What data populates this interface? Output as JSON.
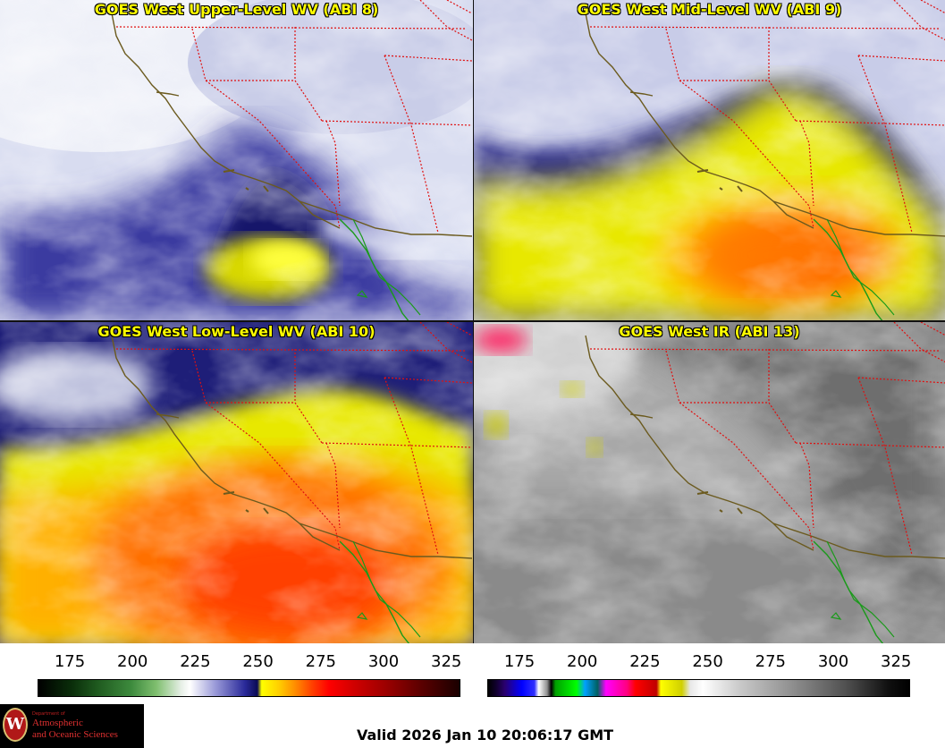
{
  "panels": [
    {
      "title": "GOES West Upper-Level WV (ABI 8)",
      "palette": "wv"
    },
    {
      "title": "GOES West Mid-Level WV (ABI 9)",
      "palette": "wv"
    },
    {
      "title": "GOES West Low-Level WV (ABI 10)",
      "palette": "wv"
    },
    {
      "title": "GOES West IR (ABI 13)",
      "palette": "ir"
    }
  ],
  "colorbars": {
    "left_ticks": [
      "175",
      "200",
      "225",
      "250",
      "275",
      "300",
      "325"
    ],
    "right_ticks": [
      "175",
      "200",
      "225",
      "250",
      "275",
      "300",
      "325"
    ]
  },
  "logo": {
    "dept": "Department of",
    "line1": "Atmospheric",
    "line2": "and Oceanic Sciences",
    "seal_letter": "W"
  },
  "valid_time": "Valid 2026 Jan 10 20:06:17 GMT",
  "colors": {
    "coast": "#6b5a1e",
    "border": "#e01010",
    "mexico_coast": "#1a9a1a",
    "title": "#ffff00"
  }
}
